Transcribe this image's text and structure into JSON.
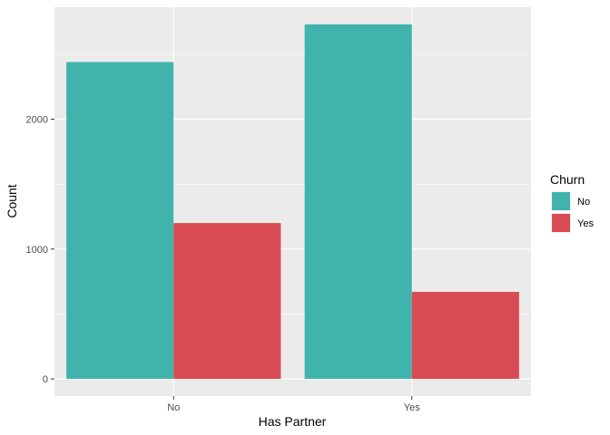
{
  "chart_data": {
    "type": "bar",
    "title": "",
    "xlabel": "Has Partner",
    "ylabel": "Count",
    "categories": [
      "No",
      "Yes"
    ],
    "series": [
      {
        "name": "No",
        "values": [
          2440,
          2730
        ]
      },
      {
        "name": "Yes",
        "values": [
          1200,
          670
        ]
      }
    ],
    "ylim": [
      -132,
      2862
    ],
    "yticks": [
      0,
      1000,
      2000
    ],
    "ytick_labels": [
      "0",
      "1000",
      "2000"
    ],
    "grid": true,
    "legend": {
      "title": "Churn",
      "position": "right",
      "entries": [
        "No",
        "Yes"
      ]
    }
  },
  "colors": {
    "panel_background": "#ebebeb",
    "grid_major": "#ffffff",
    "series": [
      "#40b4ac",
      "#d94b52"
    ]
  }
}
